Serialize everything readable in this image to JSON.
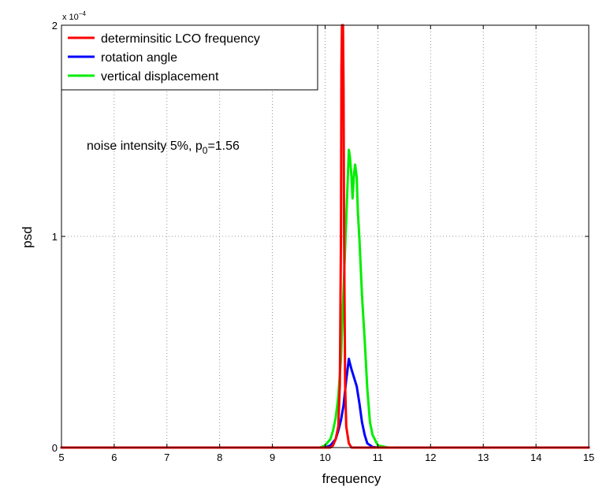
{
  "chart_data": {
    "type": "line",
    "xlabel": "frequency",
    "ylabel": "psd",
    "xlim": [
      5,
      15
    ],
    "ylim": [
      0,
      0.0002
    ],
    "x_ticks": [
      5,
      6,
      7,
      8,
      9,
      10,
      11,
      12,
      13,
      14,
      15
    ],
    "y_ticks": [
      0,
      1,
      2
    ],
    "y_tick_labels": [
      "0",
      "1",
      "2"
    ],
    "y_scale_exponent_base": "x 10",
    "y_scale_exponent_power": "−4",
    "grid": true,
    "legend_position": "top-left",
    "annotation": {
      "text": "noise intensity 5%, p",
      "subscript": "0",
      "suffix": "=1.56",
      "x": 6.2,
      "y": 0.000143
    },
    "series": [
      {
        "name": "determinsitic LCO frequency",
        "color": "#ff0000",
        "x": [
          5,
          10.1,
          10.15,
          10.2,
          10.25,
          10.28,
          10.3,
          10.31,
          10.32,
          10.33,
          10.34,
          10.35,
          10.36,
          10.38,
          10.4,
          10.45,
          10.5,
          15
        ],
        "y": [
          0,
          0,
          1e-06,
          4e-06,
          1e-05,
          3e-05,
          0.0001,
          0.00018,
          0.0002,
          0.0002,
          0.0002,
          0.00017,
          0.0001,
          3e-05,
          1e-05,
          2e-06,
          0,
          0
        ]
      },
      {
        "name": "rotation angle",
        "color": "#0000ff",
        "x": [
          5,
          10.0,
          10.1,
          10.2,
          10.25,
          10.3,
          10.35,
          10.4,
          10.43,
          10.45,
          10.47,
          10.5,
          10.55,
          10.6,
          10.65,
          10.7,
          10.75,
          10.8,
          10.9,
          11.0,
          15
        ],
        "y": [
          0,
          0,
          1e-06,
          4e-06,
          8e-06,
          1.3e-05,
          2e-05,
          3.2e-05,
          3.8e-05,
          4.2e-05,
          4e-05,
          3.7e-05,
          3.3e-05,
          2.9e-05,
          2.1e-05,
          1.2e-05,
          6e-06,
          2e-06,
          3e-07,
          0,
          0
        ]
      },
      {
        "name": "vertical displacement",
        "color": "#00ee00",
        "x": [
          5,
          9.9,
          10.0,
          10.1,
          10.15,
          10.2,
          10.25,
          10.3,
          10.35,
          10.4,
          10.43,
          10.45,
          10.47,
          10.5,
          10.52,
          10.55,
          10.57,
          10.6,
          10.62,
          10.65,
          10.7,
          10.75,
          10.8,
          10.85,
          10.9,
          11.0,
          11.2,
          15
        ],
        "y": [
          0,
          0,
          1e-06,
          4e-06,
          8e-06,
          1.4e-05,
          2.4e-05,
          4.2e-05,
          7.5e-05,
          0.000108,
          0.000128,
          0.000141,
          0.000138,
          0.000128,
          0.000118,
          0.00013,
          0.000134,
          0.000128,
          0.000112,
          9.9e-05,
          7.2e-05,
          5.1e-05,
          2.8e-05,
          1.2e-05,
          6e-06,
          1e-06,
          0,
          0
        ]
      }
    ]
  }
}
